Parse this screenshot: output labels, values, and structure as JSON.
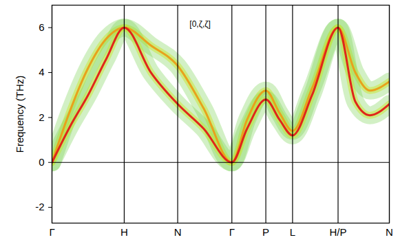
{
  "chart_data": {
    "type": "line",
    "ylabel": "Frequency (THz)",
    "xlim": [
      0,
      4.67
    ],
    "ylim": [
      -2.7,
      7.0
    ],
    "xticks": [
      {
        "value": 0,
        "label": "Γ"
      },
      {
        "value": 1.0,
        "label": "H"
      },
      {
        "value": 1.74,
        "label": "N"
      },
      {
        "value": 2.49,
        "label": "Γ"
      },
      {
        "value": 2.96,
        "label": "P"
      },
      {
        "value": 3.33,
        "label": "L"
      },
      {
        "value": 3.96,
        "label": "H/P"
      },
      {
        "value": 4.67,
        "label": "N"
      }
    ],
    "yticks": [
      -2,
      0,
      2,
      4,
      6
    ],
    "grid": "x",
    "annotations": [
      {
        "text": "[0,ζ,ζ]",
        "x": 2.05,
        "y": 6.15
      }
    ],
    "series": [
      {
        "color": "#e8a21c",
        "x": [
          0,
          0.25,
          0.5,
          0.75,
          1.0,
          1.37,
          1.74,
          2.1,
          2.49,
          2.7,
          2.96,
          3.15,
          3.33,
          3.6,
          3.96,
          4.2,
          4.4,
          4.67
        ],
        "values": [
          0,
          2.3,
          4.2,
          5.5,
          6.0,
          5.2,
          4.3,
          2.4,
          0,
          1.9,
          3.2,
          2.2,
          1.4,
          3.3,
          6.0,
          4.0,
          3.2,
          3.6
        ]
      },
      {
        "color": "#e0261a",
        "x": [
          0,
          0.25,
          0.5,
          0.75,
          1.0,
          1.37,
          1.74,
          2.1,
          2.49,
          2.7,
          2.96,
          3.15,
          3.33,
          3.6,
          3.96,
          4.2,
          4.4,
          4.67
        ],
        "values": [
          0,
          1.6,
          3.0,
          4.6,
          6.0,
          4.0,
          2.6,
          1.5,
          0,
          1.5,
          2.8,
          1.9,
          1.2,
          3.0,
          6.0,
          2.7,
          2.1,
          2.6
        ]
      }
    ]
  }
}
